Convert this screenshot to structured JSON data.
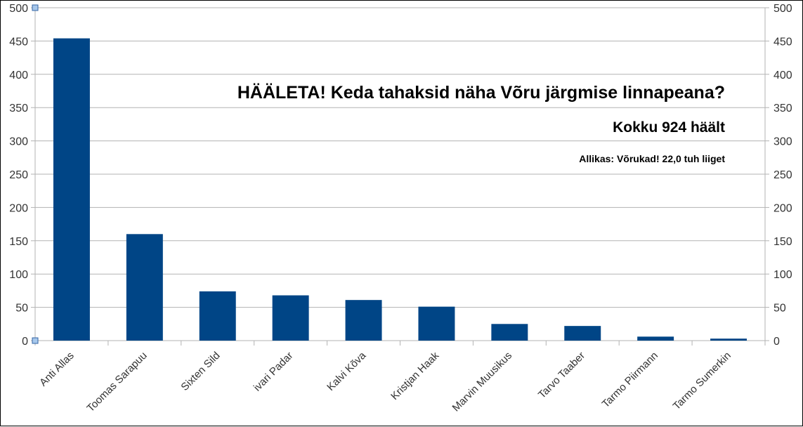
{
  "chart_data": {
    "type": "bar",
    "title": "HÄÄLETA! Keda tahaksid näha Võru järgmise linnapeana?",
    "subtitle": "Kokku 924 häält",
    "note": "Allikas: Võrukad! 22,0 tuh liiget",
    "categories": [
      "Anti Allas",
      "Toomas Sarapuu",
      "Sixten Sild",
      "ivari Padar",
      "Kalvi Kõva",
      "Kristjan Haak",
      "Marvin Muusikus",
      "Tarvo Taaber",
      "Tarmo Piirmann",
      "Tarmo Sumerkin"
    ],
    "values": [
      454,
      160,
      74,
      68,
      61,
      51,
      25,
      22,
      6,
      3
    ],
    "ylim": [
      0,
      500
    ],
    "yticks": [
      0,
      50,
      100,
      150,
      200,
      250,
      300,
      350,
      400,
      450,
      500
    ],
    "grid": true,
    "secondary_y_axis": true,
    "bar_color": "#004586",
    "grid_color": "#b3b3b3"
  }
}
